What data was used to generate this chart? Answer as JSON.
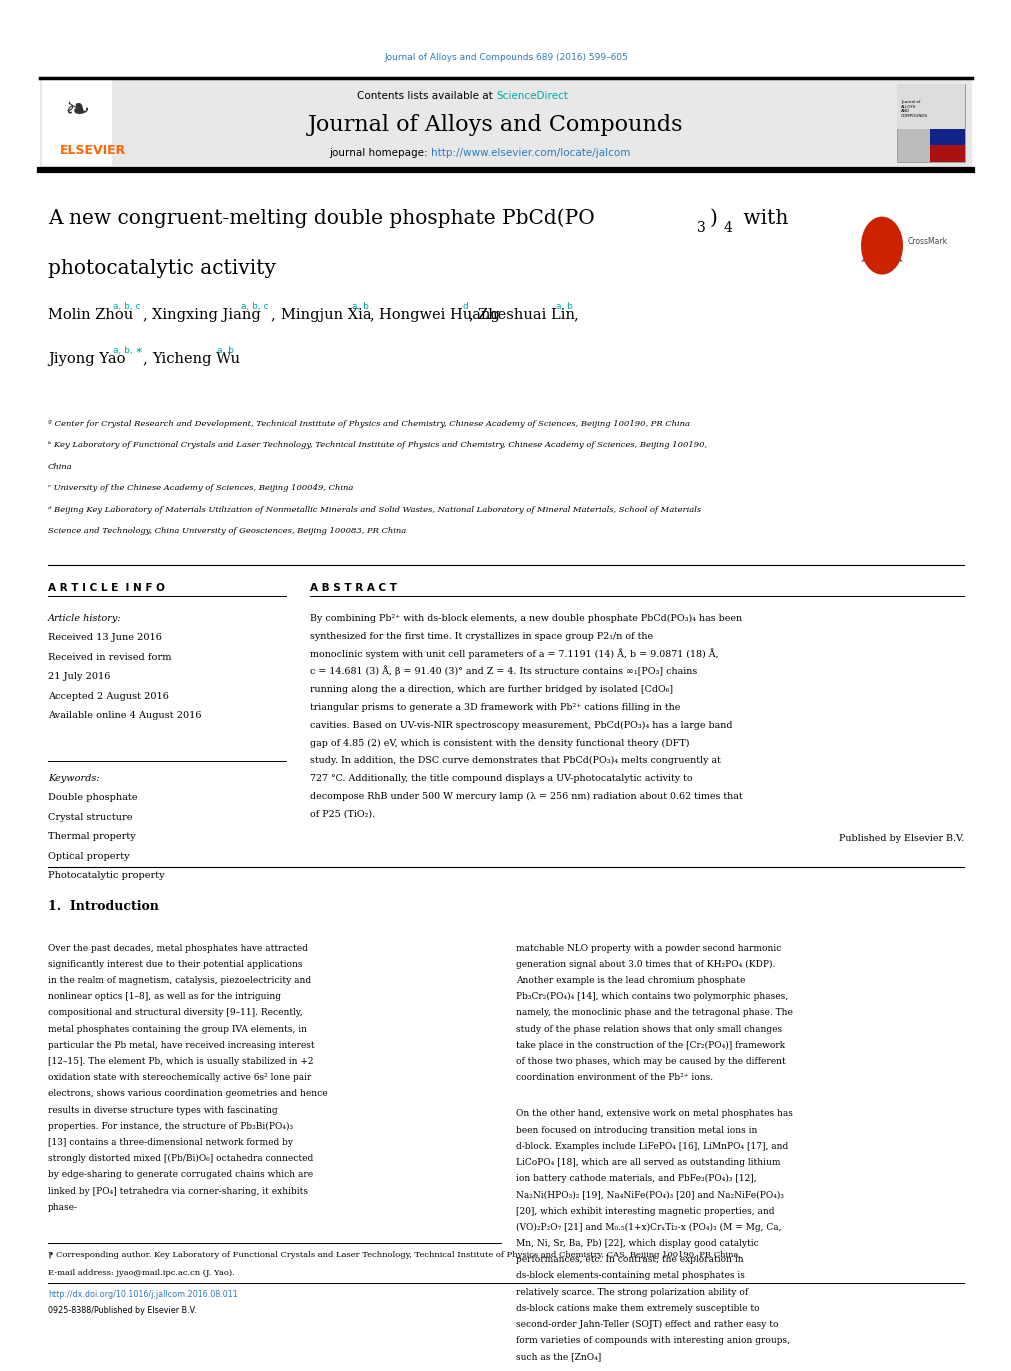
{
  "page_width": 9.92,
  "page_height": 13.23,
  "bg_color": "#ffffff",
  "top_journal_text": "Journal of Alloys and Compounds 689 (2016) 599–605",
  "top_journal_color": "#2b7bbf",
  "contents_text": "Contents lists available at ",
  "sciencedirect_text": "ScienceDirect",
  "sciencedirect_color": "#00aaaa",
  "journal_title": "Journal of Alloys and Compounds",
  "journal_homepage_prefix": "journal homepage: ",
  "journal_homepage_url": "http://www.elsevier.com/locate/jalcom",
  "journal_homepage_color": "#2b7bbf",
  "header_bg": "#e8e8e8",
  "elsevier_color": "#ff6600",
  "paper_title_line1": "A new congruent-melting double phosphate PbCd(PO",
  "paper_title_line2": "photocatalytic activity",
  "authors_sup_color": "#00aaaa",
  "affil_a": "ª Center for Crystal Research and Development, Technical Institute of Physics and Chemistry, Chinese Academy of Sciences, Beijing 100190, PR China",
  "affil_b": "ᵇ Key Laboratory of Functional Crystals and Laser Technology, Technical Institute of Physics and Chemistry, Chinese Academy of Sciences, Beijing 100190,",
  "affil_b2": "China",
  "affil_c": "ᶜ University of the Chinese Academy of Sciences, Beijing 100049, China",
  "affil_d": "ᵈ Beijing Key Laboratory of Materials Utilization of Nonmetallic Minerals and Solid Wastes, National Laboratory of Mineral Materials, School of Materials",
  "affil_d2": "Science and Technology, China University of Geosciences, Beijing 100083, PR China",
  "article_info_header": "A R T I C L E  I N F O",
  "abstract_header": "A B S T R A C T",
  "article_history_label": "Article history:",
  "received1": "Received 13 June 2016",
  "received_revised": "Received in revised form",
  "date_revised": "21 July 2016",
  "accepted": "Accepted 2 August 2016",
  "available": "Available online 4 August 2016",
  "keywords_label": "Keywords:",
  "kw1": "Double phosphate",
  "kw2": "Crystal structure",
  "kw3": "Thermal property",
  "kw4": "Optical property",
  "kw5": "Photocatalytic property",
  "abstract_text": "By combining Pb²⁺ with ds-block elements, a new double phosphate PbCd(PO₃)₄ has been synthesized for the first time. It crystallizes in space group P2₁/n of the monoclinic system with unit cell parameters of a = 7.1191 (14) Å, b = 9.0871 (18) Å, c = 14.681 (3) Å, β = 91.40 (3)° and Z = 4. Its structure contains ∞₁[PO₃] chains running along the a direction, which are further bridged by isolated [CdO₆] triangular prisms to generate a 3D framework with Pb²⁺ cations filling in the cavities. Based on UV-vis-NIR spectroscopy measurement, PbCd(PO₃)₄ has a large band gap of 4.85 (2) eV, which is consistent with the density functional theory (DFT) study. In addition, the DSC curve demonstrates that PbCd(PO₃)₄ melts congruently at 727 °C. Additionally, the title compound displays a UV-photocatalytic activity to decompose RhB under 500 W mercury lamp (λ = 256 nm) radiation about 0.62 times that of P25 (TiO₂).",
  "published_by": "Published by Elsevier B.V.",
  "intro_header": "1.  Introduction",
  "intro_col1_p1": "Over the past decades, metal phosphates have attracted significantly interest due to their potential applications in the realm of magnetism, catalysis, piezoelectricity and nonlinear optics [1–8], as well as for the intriguing compositional and structural diversity [9–11]. Recently, metal phosphates containing the group IVA elements, in particular the Pb metal, have received increasing interest [12–15]. The element Pb, which is usually stabilized in +2 oxidation state with stereochemically active 6s² lone pair electrons, shows various coordination geometries and hence results in diverse structure types with fascinating properties. For instance, the structure of Pb₃Bi(PO₄)₃ [13] contains a three-dimensional network formed by strongly distorted mixed [(Pb/Bi)O₆] octahedra connected by edge-sharing to generate corrugated chains which are linked by [PO₄] tetrahedra via corner-sharing, it exhibits phase-",
  "intro_col2_p1": "matchable NLO property with a powder second harmonic generation signal about 3.0 times that of KH₂PO₄ (KDP). Another example is the lead chromium phosphate Pb₃Cr₂(PO₄)₄ [14], which contains two polymorphic phases, namely, the monoclinic phase and the tetragonal phase. The study of the phase relation shows that only small changes take place in the construction of the [Cr₂(PO₄)] framework of those two phases, which may be caused by the different coordination environment of the Pb²⁺ ions.",
  "intro_col2_p2": "On the other hand, extensive work on metal phosphates has been focused on introducing transition metal ions in d-block. Examples include LiFePO₄ [16], LiMnPO₄ [17], and LiCoPO₄ [18], which are all served as outstanding lithium ion battery cathode materials, and PbFe₃(PO₄)₃ [12], Na₂Ni(HPO₃)₂ [19], Na₄NiFe(PO₄)₃ [20] and Na₂NiFe(PO₄)₃ [20], which exhibit interesting magnetic properties, and (VO)₂P₂O₇ [21] and M₀.₅(1+x)CrₓTi₂-x (PO₄)₃ (M = Mg, Ca, Mn, Ni, Sr, Ba, Pb) [22], which display good catalytic performances, etc. In contrast, the exploration in ds-block elements-containing metal phosphates is relatively scarce. The strong polarization ability of ds-block cations make them extremely susceptible to second-order Jahn-Teller (SOJT) effect and rather easy to form varieties of compounds with interesting anion groups, such as the [ZnO₄]",
  "footnote_star": "⁋ Corresponding author. Key Laboratory of Functional Crystals and Laser Technology, Technical Institute of Physics and Chemistry, CAS, Beijing 100190, PR China.",
  "footnote_email": "E-mail address: jyao@mail.ipc.ac.cn (J. Yao).",
  "doi_text": "http://dx.doi.org/10.1016/j.jallcom.2016.08.011",
  "issn_text": "0925-8388/Published by Elsevier B.V.",
  "link_color": "#2b7bbf"
}
